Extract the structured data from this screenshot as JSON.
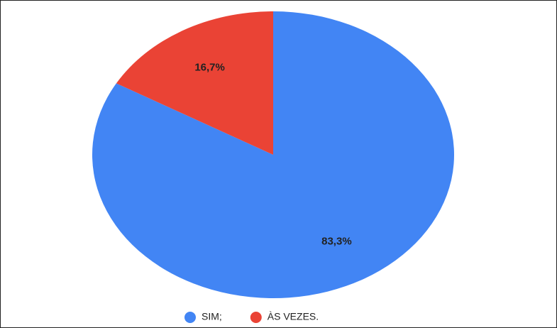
{
  "chart_data": {
    "type": "pie",
    "categories": [
      "SIM;",
      "ÀS VEZES."
    ],
    "values": [
      83.3,
      16.7
    ],
    "value_labels": [
      "83,3%",
      "16,7%"
    ],
    "colors": [
      "#4285f4",
      "#ea4335"
    ],
    "legend": "bottom"
  }
}
